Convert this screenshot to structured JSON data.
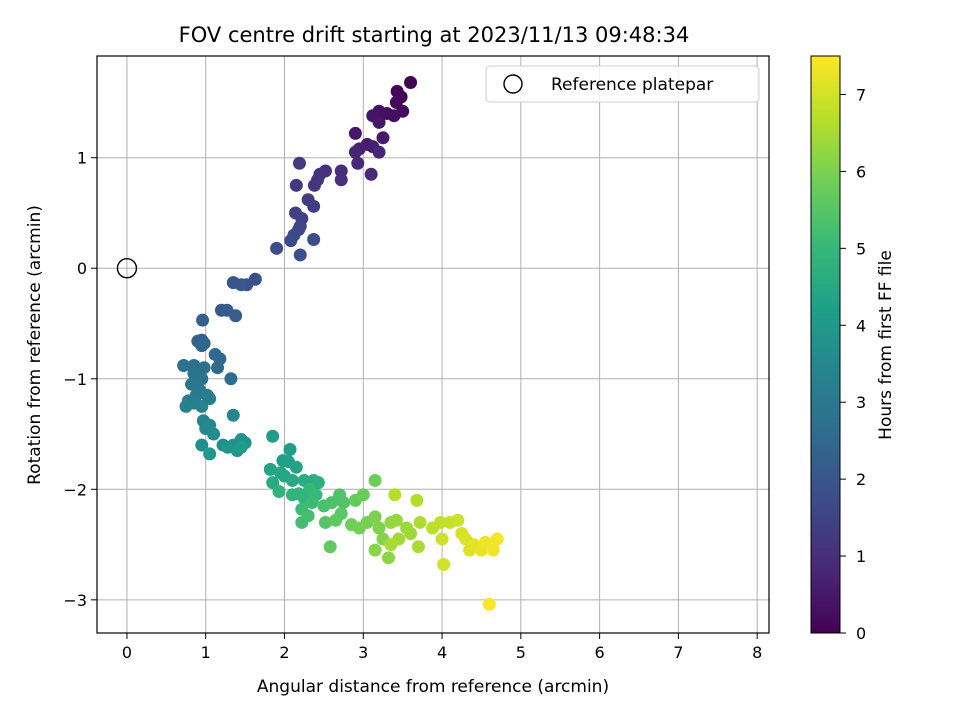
{
  "chart_data": {
    "type": "scatter",
    "title": "FOV centre drift starting at 2023/11/13 09:48:34",
    "xlabel": "Angular distance from reference (arcmin)",
    "ylabel": "Rotation from reference (arcmin)",
    "colorbar_label": "Hours from first FF file",
    "colormap": "viridis",
    "xlim": [
      -0.38,
      8.15
    ],
    "ylim": [
      -3.3,
      1.92
    ],
    "clim": [
      0,
      7.5
    ],
    "xticks": [
      0,
      1,
      2,
      3,
      4,
      5,
      6,
      7,
      8
    ],
    "yticks": [
      -3,
      -2,
      -1,
      0,
      1
    ],
    "cticks": [
      0,
      1,
      2,
      3,
      4,
      5,
      6,
      7
    ],
    "grid": true,
    "legend": {
      "placement": "upper-right",
      "entries": [
        {
          "label": "Reference platepar",
          "marker": "open-circle"
        }
      ]
    },
    "reference_point": {
      "x": 0,
      "y": 0
    },
    "series": [
      {
        "columns": [
          "x",
          "y",
          "hours"
        ],
        "points": [
          [
            3.6,
            1.68,
            0.0
          ],
          [
            3.43,
            1.6,
            0.05
          ],
          [
            3.48,
            1.55,
            0.1
          ],
          [
            3.42,
            1.5,
            0.15
          ],
          [
            3.5,
            1.42,
            0.2
          ],
          [
            3.39,
            1.38,
            0.25
          ],
          [
            3.3,
            1.4,
            0.3
          ],
          [
            3.2,
            1.42,
            0.35
          ],
          [
            3.12,
            1.38,
            0.4
          ],
          [
            3.2,
            1.32,
            0.45
          ],
          [
            2.9,
            1.22,
            0.5
          ],
          [
            3.25,
            1.18,
            0.55
          ],
          [
            3.05,
            1.12,
            0.6
          ],
          [
            3.12,
            1.1,
            0.65
          ],
          [
            2.95,
            1.08,
            0.7
          ],
          [
            2.9,
            1.05,
            0.75
          ],
          [
            3.2,
            1.05,
            0.8
          ],
          [
            2.93,
            0.95,
            0.85
          ],
          [
            3.1,
            0.85,
            0.9
          ],
          [
            2.72,
            0.88,
            0.95
          ],
          [
            2.72,
            0.8,
            1.0
          ],
          [
            2.52,
            0.88,
            1.05
          ],
          [
            2.45,
            0.85,
            1.1
          ],
          [
            2.42,
            0.8,
            1.15
          ],
          [
            2.38,
            0.75,
            1.2
          ],
          [
            2.15,
            0.75,
            1.25
          ],
          [
            2.19,
            0.95,
            1.3
          ],
          [
            2.3,
            0.62,
            1.35
          ],
          [
            2.37,
            0.56,
            1.4
          ],
          [
            2.14,
            0.5,
            1.45
          ],
          [
            2.22,
            0.45,
            1.5
          ],
          [
            2.2,
            0.38,
            1.55
          ],
          [
            2.18,
            0.35,
            1.6
          ],
          [
            2.12,
            0.3,
            1.65
          ],
          [
            2.08,
            0.25,
            1.7
          ],
          [
            1.9,
            0.18,
            1.75
          ],
          [
            2.37,
            0.26,
            1.8
          ],
          [
            2.2,
            0.12,
            1.85
          ],
          [
            1.63,
            -0.1,
            1.9
          ],
          [
            1.52,
            -0.15,
            1.95
          ],
          [
            1.35,
            -0.13,
            2.0
          ],
          [
            1.45,
            -0.15,
            2.05
          ],
          [
            1.2,
            -0.38,
            2.1
          ],
          [
            1.27,
            -0.38,
            2.15
          ],
          [
            1.38,
            -0.43,
            2.2
          ],
          [
            0.96,
            -0.47,
            2.25
          ],
          [
            0.95,
            -0.65,
            2.3
          ],
          [
            0.9,
            -0.66,
            2.35
          ],
          [
            0.98,
            -0.68,
            2.4
          ],
          [
            0.95,
            -0.7,
            2.45
          ],
          [
            1.12,
            -0.78,
            2.5
          ],
          [
            1.18,
            -0.82,
            2.55
          ],
          [
            1.15,
            -0.9,
            2.6
          ],
          [
            1.32,
            -1.0,
            2.65
          ],
          [
            0.85,
            -0.88,
            2.7
          ],
          [
            0.72,
            -0.88,
            2.75
          ],
          [
            0.98,
            -0.9,
            2.8
          ],
          [
            0.85,
            -0.95,
            2.85
          ],
          [
            0.95,
            -1.0,
            2.9
          ],
          [
            0.82,
            -1.05,
            2.95
          ],
          [
            0.92,
            -1.1,
            3.0
          ],
          [
            0.88,
            -1.15,
            3.05
          ],
          [
            1.02,
            -1.15,
            3.1
          ],
          [
            1.05,
            -1.18,
            3.15
          ],
          [
            0.78,
            -1.2,
            3.2
          ],
          [
            0.85,
            -1.22,
            3.25
          ],
          [
            0.95,
            -1.25,
            3.3
          ],
          [
            0.75,
            -1.25,
            3.35
          ],
          [
            0.97,
            -1.38,
            3.4
          ],
          [
            1.35,
            -1.33,
            3.45
          ],
          [
            1.0,
            -1.45,
            3.5
          ],
          [
            1.05,
            -1.42,
            3.55
          ],
          [
            1.1,
            -1.5,
            3.6
          ],
          [
            0.95,
            -1.6,
            3.65
          ],
          [
            1.22,
            -1.6,
            3.7
          ],
          [
            1.35,
            -1.6,
            3.75
          ],
          [
            1.45,
            -1.55,
            3.8
          ],
          [
            1.5,
            -1.58,
            3.85
          ],
          [
            1.28,
            -1.62,
            3.9
          ],
          [
            1.4,
            -1.65,
            3.95
          ],
          [
            1.05,
            -1.68,
            4.0
          ],
          [
            1.45,
            -1.62,
            4.05
          ],
          [
            1.85,
            -1.52,
            4.1
          ],
          [
            2.07,
            -1.64,
            4.15
          ],
          [
            1.98,
            -1.74,
            4.2
          ],
          [
            2.05,
            -1.75,
            4.25
          ],
          [
            2.15,
            -1.8,
            4.3
          ],
          [
            1.82,
            -1.82,
            4.35
          ],
          [
            1.95,
            -1.85,
            4.4
          ],
          [
            2.0,
            -1.88,
            4.45
          ],
          [
            2.1,
            -1.92,
            4.5
          ],
          [
            1.85,
            -1.94,
            4.55
          ],
          [
            2.25,
            -1.92,
            4.6
          ],
          [
            2.3,
            -1.94,
            4.65
          ],
          [
            2.37,
            -1.92,
            4.7
          ],
          [
            2.43,
            -1.94,
            4.75
          ],
          [
            1.93,
            -2.02,
            4.8
          ],
          [
            2.1,
            -2.05,
            4.85
          ],
          [
            2.18,
            -2.04,
            4.9
          ],
          [
            2.25,
            -2.08,
            4.95
          ],
          [
            2.32,
            -2.0,
            5.0
          ],
          [
            2.4,
            -2.05,
            5.05
          ],
          [
            2.35,
            -2.12,
            5.1
          ],
          [
            2.22,
            -2.18,
            5.15
          ],
          [
            2.22,
            -2.3,
            5.2
          ],
          [
            2.3,
            -2.24,
            5.25
          ],
          [
            2.5,
            -2.15,
            5.3
          ],
          [
            2.6,
            -2.12,
            5.35
          ],
          [
            2.7,
            -2.05,
            5.4
          ],
          [
            2.75,
            -2.12,
            5.45
          ],
          [
            2.52,
            -2.3,
            5.5
          ],
          [
            2.72,
            -2.22,
            5.55
          ],
          [
            2.65,
            -2.28,
            5.6
          ],
          [
            2.58,
            -2.52,
            5.65
          ],
          [
            2.9,
            -2.1,
            5.7
          ],
          [
            3.0,
            -2.05,
            5.75
          ],
          [
            3.15,
            -1.92,
            5.8
          ],
          [
            2.85,
            -2.32,
            5.85
          ],
          [
            2.95,
            -2.35,
            5.9
          ],
          [
            3.05,
            -2.3,
            5.95
          ],
          [
            3.15,
            -2.25,
            6.0
          ],
          [
            3.2,
            -2.35,
            6.05
          ],
          [
            3.25,
            -2.45,
            6.1
          ],
          [
            3.15,
            -2.55,
            6.15
          ],
          [
            3.32,
            -2.62,
            6.2
          ],
          [
            3.35,
            -2.3,
            6.25
          ],
          [
            3.42,
            -2.28,
            6.3
          ],
          [
            3.55,
            -2.35,
            6.35
          ],
          [
            3.6,
            -2.4,
            6.4
          ],
          [
            3.45,
            -2.45,
            6.45
          ],
          [
            3.35,
            -2.5,
            6.5
          ],
          [
            3.7,
            -2.52,
            6.55
          ],
          [
            3.72,
            -2.3,
            6.6
          ],
          [
            3.68,
            -2.1,
            6.65
          ],
          [
            3.4,
            -2.05,
            6.7
          ],
          [
            3.88,
            -2.35,
            6.75
          ],
          [
            3.98,
            -2.3,
            6.8
          ],
          [
            4.1,
            -2.3,
            6.85
          ],
          [
            4.2,
            -2.28,
            6.9
          ],
          [
            4.0,
            -2.45,
            6.95
          ],
          [
            4.02,
            -2.68,
            7.0
          ],
          [
            4.25,
            -2.4,
            7.05
          ],
          [
            4.3,
            -2.45,
            7.1
          ],
          [
            4.35,
            -2.55,
            7.15
          ],
          [
            4.4,
            -2.5,
            7.2
          ],
          [
            4.5,
            -2.55,
            7.25
          ],
          [
            4.55,
            -2.48,
            7.3
          ],
          [
            4.65,
            -2.55,
            7.35
          ],
          [
            4.7,
            -2.45,
            7.4
          ],
          [
            4.6,
            -3.04,
            7.45
          ]
        ]
      }
    ]
  },
  "ui": {
    "legend_label": "Reference platepar"
  }
}
